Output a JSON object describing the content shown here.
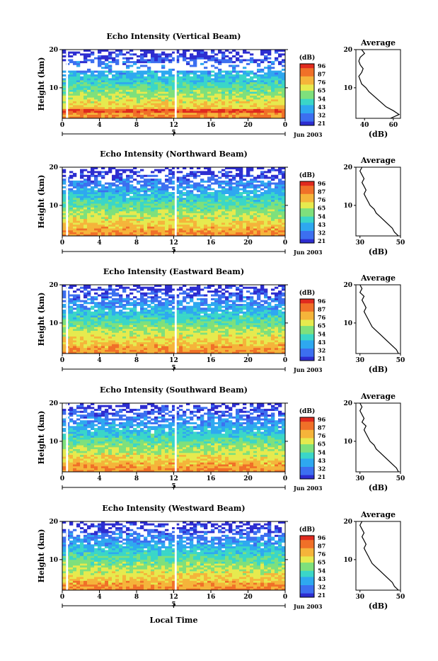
{
  "footer_label": "Local Time",
  "date_label": "Jun 2003",
  "main_ylabel": "Height (km)",
  "avg_title": "Average",
  "avg_xlabel": "(dB)",
  "colorbar_title": "(dB)",
  "colorbar_ticks": [
    "96",
    "87",
    "76",
    "65",
    "54",
    "43",
    "32",
    "21"
  ],
  "colors": {
    "scale": [
      "#2d2dd0",
      "#3c6ff0",
      "#2ea8f0",
      "#3ad6c8",
      "#7ee07c",
      "#e6ea4e",
      "#f5b43a",
      "#f07028",
      "#e02a1e"
    ]
  },
  "chart_data": [
    {
      "type": "heatmap",
      "title": "Echo Intensity (Vertical Beam)",
      "xlabel": "",
      "ylabel": "Height (km)",
      "xlim": [
        0,
        24
      ],
      "ylim": [
        2,
        20
      ],
      "x_ticks": [
        "0",
        "4",
        "8",
        "12",
        "16",
        "20",
        "0"
      ],
      "y_ticks": [
        "20",
        "10"
      ],
      "date_marker": "5",
      "colorbar": {
        "label": "(dB)",
        "range": [
          21,
          96
        ]
      },
      "profile": {
        "title": "Average",
        "xlabel": "(dB)",
        "xlim": [
          34,
          65
        ],
        "x_ticks": [
          "40",
          "60"
        ],
        "y_ticks": [
          "20",
          "10"
        ],
        "heights": [
          2,
          3,
          4,
          5,
          6,
          7,
          8,
          9,
          10,
          11,
          12,
          13,
          14,
          15,
          16,
          17,
          18,
          19,
          20
        ],
        "values": [
          58,
          64,
          60,
          55,
          52,
          49,
          46,
          43,
          41,
          38,
          37,
          36,
          38,
          39,
          37,
          36,
          37,
          40,
          38
        ]
      }
    },
    {
      "type": "heatmap",
      "title": "Echo Intensity (Northward Beam)",
      "xlabel": "",
      "ylabel": "Height (km)",
      "xlim": [
        0,
        24
      ],
      "ylim": [
        2,
        20
      ],
      "x_ticks": [
        "0",
        "4",
        "8",
        "12",
        "16",
        "20",
        "0"
      ],
      "y_ticks": [
        "20",
        "10"
      ],
      "date_marker": "5",
      "colorbar": {
        "label": "(dB)",
        "range": [
          21,
          96
        ]
      },
      "profile": {
        "title": "Average",
        "xlabel": "(dB)",
        "xlim": [
          28,
          50
        ],
        "x_ticks": [
          "30",
          "50"
        ],
        "y_ticks": [
          "20",
          "10"
        ],
        "heights": [
          2,
          3,
          4,
          5,
          6,
          7,
          8,
          9,
          10,
          11,
          12,
          13,
          14,
          15,
          16,
          17,
          18,
          19,
          20
        ],
        "values": [
          49,
          47,
          46,
          44,
          42,
          40,
          38,
          37,
          35,
          34,
          33,
          32,
          33,
          32,
          31,
          32,
          31,
          30,
          31
        ]
      }
    },
    {
      "type": "heatmap",
      "title": "Echo Intensity (Eastward Beam)",
      "xlabel": "",
      "ylabel": "Height (km)",
      "xlim": [
        0,
        24
      ],
      "ylim": [
        2,
        20
      ],
      "x_ticks": [
        "0",
        "4",
        "8",
        "12",
        "16",
        "20",
        "0"
      ],
      "y_ticks": [
        "20",
        "10"
      ],
      "date_marker": "5",
      "colorbar": {
        "label": "(dB)",
        "range": [
          21,
          96
        ]
      },
      "profile": {
        "title": "Average",
        "xlabel": "(dB)",
        "xlim": [
          28,
          50
        ],
        "x_ticks": [
          "30",
          "50"
        ],
        "y_ticks": [
          "20",
          "10"
        ],
        "heights": [
          2,
          3,
          4,
          5,
          6,
          7,
          8,
          9,
          10,
          11,
          12,
          13,
          14,
          15,
          16,
          17,
          18,
          19,
          20
        ],
        "values": [
          49,
          48,
          46,
          44,
          42,
          40,
          38,
          36,
          35,
          34,
          33,
          32,
          33,
          32,
          31,
          32,
          30,
          31,
          30
        ]
      }
    },
    {
      "type": "heatmap",
      "title": "Echo Intensity (Southward Beam)",
      "xlabel": "",
      "ylabel": "Height (km)",
      "xlim": [
        0,
        24
      ],
      "ylim": [
        2,
        20
      ],
      "x_ticks": [
        "0",
        "4",
        "8",
        "12",
        "16",
        "20",
        "0"
      ],
      "y_ticks": [
        "20",
        "10"
      ],
      "date_marker": "5",
      "colorbar": {
        "label": "(dB)",
        "range": [
          21,
          96
        ]
      },
      "profile": {
        "title": "Average",
        "xlabel": "(dB)",
        "xlim": [
          28,
          50
        ],
        "x_ticks": [
          "30",
          "50"
        ],
        "y_ticks": [
          "20",
          "10"
        ],
        "heights": [
          2,
          3,
          4,
          5,
          6,
          7,
          8,
          9,
          10,
          11,
          12,
          13,
          14,
          15,
          16,
          17,
          18,
          19,
          20
        ],
        "values": [
          49,
          48,
          46,
          44,
          42,
          40,
          38,
          37,
          35,
          34,
          33,
          32,
          33,
          31,
          32,
          31,
          30,
          31,
          30
        ]
      }
    },
    {
      "type": "heatmap",
      "title": "Echo Intensity (Westward Beam)",
      "xlabel": "Local Time",
      "ylabel": "Height (km)",
      "xlim": [
        0,
        24
      ],
      "ylim": [
        2,
        20
      ],
      "x_ticks": [
        "0",
        "4",
        "8",
        "12",
        "16",
        "20",
        "0"
      ],
      "y_ticks": [
        "20",
        "10"
      ],
      "date_marker": "5",
      "colorbar": {
        "label": "(dB)",
        "range": [
          21,
          96
        ]
      },
      "profile": {
        "title": "Average",
        "xlabel": "(dB)",
        "xlim": [
          28,
          50
        ],
        "x_ticks": [
          "30",
          "50"
        ],
        "y_ticks": [
          "20",
          "10"
        ],
        "heights": [
          2,
          3,
          4,
          5,
          6,
          7,
          8,
          9,
          10,
          11,
          12,
          13,
          14,
          15,
          16,
          17,
          18,
          19,
          20
        ],
        "values": [
          49,
          47,
          46,
          44,
          42,
          40,
          38,
          36,
          35,
          34,
          33,
          32,
          33,
          32,
          31,
          32,
          31,
          30,
          31
        ]
      }
    }
  ]
}
